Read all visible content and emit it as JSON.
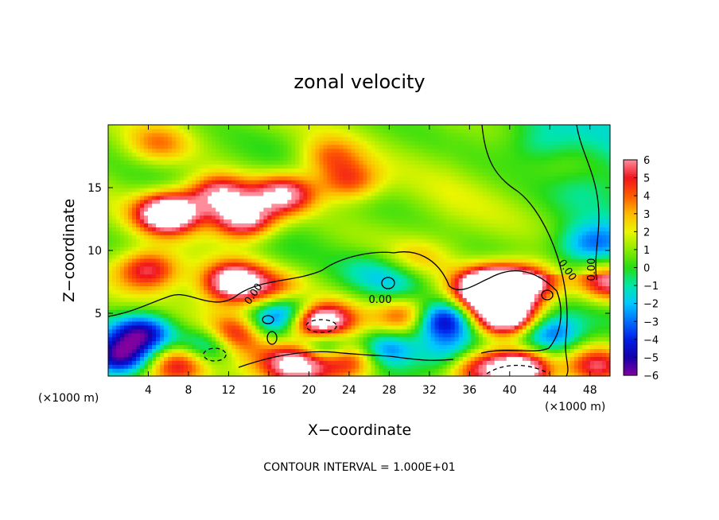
{
  "chart_data": {
    "type": "heatmap",
    "title": "zonal velocity",
    "xlabel": "X−coordinate",
    "ylabel": "Z−coordinate",
    "x_unit": "(×1000 m)",
    "y_unit": "(×1000 m)",
    "xlim": [
      0,
      50
    ],
    "ylim": [
      0,
      20
    ],
    "x_ticks": [
      "4",
      "8",
      "12",
      "16",
      "20",
      "24",
      "28",
      "32",
      "36",
      "40",
      "44",
      "48"
    ],
    "y_ticks": [
      "5",
      "10",
      "15"
    ],
    "colorbar": {
      "range": [
        -6,
        6
      ],
      "ticks": [
        "6",
        "5",
        "4",
        "3",
        "2",
        "1",
        "0",
        "−1",
        "−2",
        "−3",
        "−4",
        "−5",
        "−6"
      ]
    },
    "contour_label": "0.00",
    "contour_interval_note": "CONTOUR INTERVAL = 1.000E+01",
    "features": [
      {
        "kind": "max",
        "x": 6,
        "y": 13,
        "value": 9
      },
      {
        "kind": "max",
        "x": 13.5,
        "y": 12.5,
        "value": 7
      },
      {
        "kind": "max",
        "x": 11,
        "y": 14.5,
        "value": 6
      },
      {
        "kind": "max",
        "x": 17.5,
        "y": 14.5,
        "value": 6
      },
      {
        "kind": "max",
        "x": 24,
        "y": 15.5,
        "value": 4
      },
      {
        "kind": "max",
        "x": 22,
        "y": 17.5,
        "value": 3
      },
      {
        "kind": "max",
        "x": 5,
        "y": 18.5,
        "value": 2.5
      },
      {
        "kind": "max",
        "x": 4,
        "y": 8.5,
        "value": 5
      },
      {
        "kind": "max",
        "x": 12.5,
        "y": 7.5,
        "value": 7
      },
      {
        "kind": "max",
        "x": 17,
        "y": 6.5,
        "value": 4
      },
      {
        "kind": "max",
        "x": 21,
        "y": 4.2,
        "value": 9
      },
      {
        "kind": "max",
        "x": 30,
        "y": 4.8,
        "value": 5
      },
      {
        "kind": "max",
        "x": 37.5,
        "y": 6.8,
        "value": 5
      },
      {
        "kind": "max",
        "x": 39.5,
        "y": 4.8,
        "value": 9
      },
      {
        "kind": "max",
        "x": 38.5,
        "y": 7.2,
        "value": 7
      },
      {
        "kind": "max",
        "x": 42,
        "y": 7.5,
        "value": 6
      },
      {
        "kind": "max",
        "x": 24,
        "y": 1.5,
        "value": 6
      },
      {
        "kind": "max",
        "x": 19,
        "y": 1.2,
        "value": 7
      },
      {
        "kind": "max",
        "x": 36,
        "y": 1.0,
        "value": 6
      },
      {
        "kind": "max",
        "x": 41,
        "y": 0.6,
        "value": 9
      },
      {
        "kind": "max",
        "x": 48.5,
        "y": 0.8,
        "value": 5
      },
      {
        "kind": "max",
        "x": 49.8,
        "y": 7.5,
        "value": 5
      },
      {
        "kind": "max",
        "x": 31,
        "y": 9.5,
        "value": 1.5
      },
      {
        "kind": "max",
        "x": 13,
        "y": 3.5,
        "value": 6
      },
      {
        "kind": "max",
        "x": 7,
        "y": 1.0,
        "value": 5
      },
      {
        "kind": "min",
        "x": 18,
        "y": 5.5,
        "value": -6
      },
      {
        "kind": "min",
        "x": 21.5,
        "y": 2.5,
        "value": -7
      },
      {
        "kind": "min",
        "x": 3.5,
        "y": 3.5,
        "value": -6
      },
      {
        "kind": "min",
        "x": 1,
        "y": 1.5,
        "value": -6
      },
      {
        "kind": "min",
        "x": 10,
        "y": 2.5,
        "value": -5
      },
      {
        "kind": "min",
        "x": 33,
        "y": 4.5,
        "value": -6
      },
      {
        "kind": "min",
        "x": 27.5,
        "y": 2.2,
        "value": -5
      },
      {
        "kind": "min",
        "x": 34.5,
        "y": 1.5,
        "value": -5
      },
      {
        "kind": "min",
        "x": 44,
        "y": 3.5,
        "value": -4
      },
      {
        "kind": "min",
        "x": 29,
        "y": 7.5,
        "value": -2
      },
      {
        "kind": "min",
        "x": 26,
        "y": 8.5,
        "value": -1.5
      },
      {
        "kind": "min",
        "x": 48,
        "y": 10.5,
        "value": -3
      },
      {
        "kind": "min",
        "x": 43,
        "y": 18.5,
        "value": -1.5
      },
      {
        "kind": "min",
        "x": 47.5,
        "y": 15,
        "value": -1
      },
      {
        "kind": "min",
        "x": 15.5,
        "y": 4,
        "value": -4
      }
    ]
  }
}
